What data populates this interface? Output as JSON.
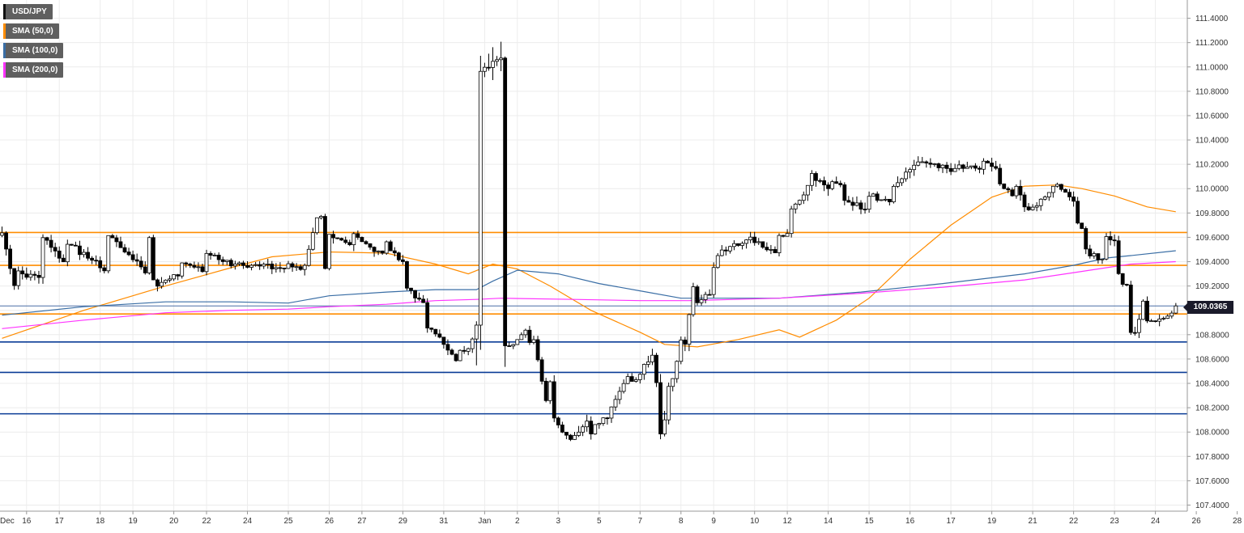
{
  "legend": {
    "symbol": "USD/JPY",
    "sma50": "SMA (50,0)",
    "sma100": "SMA (100,0)",
    "sma200": "SMA (200,0)"
  },
  "price_tag": "109.0365",
  "chart_data": {
    "type": "candlestick",
    "symbol": "USD/JPY",
    "ylim": [
      107.35,
      111.55
    ],
    "yticks": [
      107.4,
      107.6,
      107.8,
      108.0,
      108.2,
      108.4,
      108.6,
      108.8,
      109.0,
      109.2,
      109.4,
      109.6,
      109.8,
      110.0,
      110.2,
      110.4,
      110.6,
      110.8,
      111.0,
      111.2,
      111.4
    ],
    "ytick_labels": [
      "107.4000",
      "107.6000",
      "107.8000",
      "108.0000",
      "108.2000",
      "108.4000",
      "108.6000",
      "108.8000",
      "109.0000",
      "109.2000",
      "109.4000",
      "109.6000",
      "109.8000",
      "110.0000",
      "110.2000",
      "110.4000",
      "110.6000",
      "110.8000",
      "111.0000",
      "111.2000",
      "111.4000"
    ],
    "xtick_labels": [
      "Dec",
      "16",
      "17",
      "18",
      "19",
      "20",
      "22",
      "24",
      "25",
      "26",
      "27",
      "29",
      "31",
      "Jan",
      "2",
      "3",
      "5",
      "7",
      "8",
      "9",
      "10",
      "12",
      "14",
      "15",
      "16",
      "17",
      "19",
      "21",
      "22",
      "23",
      "24",
      "26",
      "28"
    ],
    "xtick_index": [
      0,
      6,
      14,
      24,
      32,
      42,
      50,
      60,
      70,
      80,
      88,
      98,
      108,
      118,
      126,
      136,
      146,
      156,
      166,
      174,
      184,
      192,
      202,
      212,
      222,
      232,
      242,
      252,
      262,
      272,
      282,
      292,
      302
    ],
    "candle_count": 288,
    "last_price": 109.0365,
    "current_price_line": {
      "value": 109.0365,
      "color": "#4a6fa5"
    },
    "horizontal_levels": [
      {
        "value": 109.64,
        "color": "#ff8c00"
      },
      {
        "value": 109.37,
        "color": "#ff8c00"
      },
      {
        "value": 108.97,
        "color": "#ff8c00"
      },
      {
        "value": 108.74,
        "color": "#0a3c96"
      },
      {
        "value": 108.49,
        "color": "#0a3c96"
      },
      {
        "value": 108.15,
        "color": "#0a3c96"
      }
    ],
    "segments": [
      [
        0,
        109.62,
        109.22,
        0.06
      ],
      [
        4,
        109.3,
        109.28,
        0.06
      ],
      [
        10,
        109.62,
        109.4,
        0.06
      ],
      [
        16,
        109.55,
        109.35,
        0.06
      ],
      [
        26,
        109.62,
        109.33,
        0.06
      ],
      [
        36,
        109.58,
        109.25,
        0.06
      ],
      [
        38,
        109.22,
        109.3,
        0.05
      ],
      [
        44,
        109.4,
        109.32,
        0.05
      ],
      [
        50,
        109.48,
        109.4,
        0.05
      ],
      [
        56,
        109.38,
        109.36,
        0.04
      ],
      [
        62,
        109.38,
        109.35,
        0.05
      ],
      [
        70,
        109.4,
        109.33,
        0.05
      ],
      [
        74,
        109.38,
        109.75,
        0.06
      ],
      [
        78,
        109.75,
        109.32,
        0.06
      ],
      [
        80,
        109.6,
        109.55,
        0.06
      ],
      [
        86,
        109.65,
        109.55,
        0.06
      ],
      [
        90,
        109.5,
        109.45,
        0.05
      ],
      [
        94,
        109.55,
        109.42,
        0.05
      ],
      [
        98,
        109.38,
        109.2,
        0.05
      ],
      [
        100,
        109.15,
        109.05,
        0.05
      ],
      [
        104,
        108.85,
        108.8,
        0.05
      ],
      [
        108,
        108.7,
        108.58,
        0.05
      ],
      [
        112,
        108.65,
        108.7,
        0.05
      ],
      [
        115,
        108.75,
        108.78,
        0.04
      ],
      [
        116,
        108.78,
        110.95,
        0.25
      ],
      [
        118,
        110.95,
        111.1,
        0.15
      ],
      [
        121,
        111.18,
        111.05,
        0.12
      ],
      [
        122,
        111.0,
        108.7,
        0.2
      ],
      [
        124,
        108.72,
        108.78,
        0.05
      ],
      [
        128,
        108.85,
        108.75,
        0.05
      ],
      [
        130,
        108.78,
        108.25,
        0.06
      ],
      [
        134,
        108.4,
        108.1,
        0.06
      ],
      [
        136,
        108.05,
        107.92,
        0.05
      ],
      [
        140,
        107.95,
        108.08,
        0.06
      ],
      [
        144,
        108.0,
        108.12,
        0.06
      ],
      [
        148,
        108.1,
        108.35,
        0.06
      ],
      [
        152,
        108.42,
        108.45,
        0.06
      ],
      [
        156,
        108.5,
        108.65,
        0.06
      ],
      [
        160,
        108.55,
        108.42,
        0.05
      ],
      [
        161,
        108.4,
        108.0,
        0.08
      ],
      [
        162,
        108.1,
        108.35,
        0.1
      ],
      [
        164,
        108.42,
        108.6,
        0.06
      ],
      [
        166,
        108.72,
        108.75,
        0.05
      ],
      [
        167,
        108.75,
        109.2,
        0.08
      ],
      [
        170,
        109.08,
        109.15,
        0.06
      ],
      [
        174,
        109.35,
        109.45,
        0.05
      ],
      [
        176,
        109.5,
        109.55,
        0.05
      ],
      [
        182,
        109.6,
        109.58,
        0.06
      ],
      [
        185,
        109.55,
        109.48,
        0.05
      ],
      [
        190,
        109.6,
        109.62,
        0.05
      ],
      [
        193,
        109.82,
        109.88,
        0.06
      ],
      [
        196,
        109.95,
        110.0,
        0.06
      ],
      [
        198,
        110.12,
        110.05,
        0.07
      ],
      [
        202,
        110.02,
        110.05,
        0.07
      ],
      [
        206,
        109.88,
        109.85,
        0.06
      ],
      [
        212,
        109.95,
        109.88,
        0.05
      ],
      [
        218,
        110.0,
        110.12,
        0.06
      ],
      [
        222,
        110.18,
        110.22,
        0.06
      ],
      [
        226,
        110.2,
        110.15,
        0.05
      ],
      [
        234,
        110.18,
        110.18,
        0.05
      ],
      [
        240,
        110.22,
        110.15,
        0.06
      ],
      [
        244,
        110.05,
        109.95,
        0.06
      ],
      [
        248,
        110.02,
        109.8,
        0.06
      ],
      [
        252,
        109.85,
        110.0,
        0.05
      ],
      [
        258,
        110.02,
        109.95,
        0.05
      ],
      [
        262,
        109.9,
        109.7,
        0.06
      ],
      [
        264,
        109.68,
        109.5,
        0.05
      ],
      [
        266,
        109.45,
        109.42,
        0.06
      ],
      [
        270,
        109.6,
        109.6,
        0.05
      ],
      [
        272,
        109.55,
        109.3,
        0.06
      ],
      [
        274,
        109.25,
        109.22,
        0.04
      ],
      [
        275,
        109.2,
        109.2,
        0.02
      ],
      [
        276,
        109.2,
        108.82,
        0.06
      ],
      [
        277,
        108.82,
        109.05,
        0.06
      ],
      [
        280,
        109.05,
        108.92,
        0.06
      ],
      [
        281,
        108.92,
        108.98,
        0.05
      ],
      [
        287,
        109.02,
        109.04,
        0.04
      ]
    ],
    "sma_series": [
      {
        "name": "SMA (50,0)",
        "color": "#ff8c00",
        "points": [
          [
            0,
            108.77
          ],
          [
            20,
            109.0
          ],
          [
            40,
            109.2
          ],
          [
            56,
            109.35
          ],
          [
            66,
            109.44
          ],
          [
            80,
            109.48
          ],
          [
            94,
            109.47
          ],
          [
            106,
            109.38
          ],
          [
            114,
            109.3
          ],
          [
            120,
            109.38
          ],
          [
            126,
            109.34
          ],
          [
            134,
            109.2
          ],
          [
            144,
            109.0
          ],
          [
            156,
            108.82
          ],
          [
            162,
            108.72
          ],
          [
            170,
            108.7
          ],
          [
            180,
            108.76
          ],
          [
            190,
            108.84
          ],
          [
            195,
            108.78
          ],
          [
            204,
            108.92
          ],
          [
            212,
            109.1
          ],
          [
            222,
            109.42
          ],
          [
            232,
            109.7
          ],
          [
            242,
            109.93
          ],
          [
            250,
            110.02
          ],
          [
            258,
            110.03
          ],
          [
            264,
            110.0
          ],
          [
            272,
            109.94
          ],
          [
            280,
            109.85
          ],
          [
            287,
            109.81
          ]
        ]
      },
      {
        "name": "SMA (100,0)",
        "color": "#3a6ea5",
        "points": [
          [
            0,
            108.96
          ],
          [
            20,
            109.03
          ],
          [
            40,
            109.07
          ],
          [
            56,
            109.07
          ],
          [
            70,
            109.06
          ],
          [
            80,
            109.12
          ],
          [
            94,
            109.15
          ],
          [
            106,
            109.17
          ],
          [
            116,
            109.17
          ],
          [
            120,
            109.24
          ],
          [
            126,
            109.33
          ],
          [
            136,
            109.3
          ],
          [
            146,
            109.22
          ],
          [
            156,
            109.16
          ],
          [
            166,
            109.1
          ],
          [
            176,
            109.1
          ],
          [
            190,
            109.1
          ],
          [
            210,
            109.15
          ],
          [
            230,
            109.22
          ],
          [
            250,
            109.3
          ],
          [
            262,
            109.37
          ],
          [
            270,
            109.43
          ],
          [
            276,
            109.45
          ],
          [
            287,
            109.49
          ]
        ]
      },
      {
        "name": "SMA (200,0)",
        "color": "#ff33ff",
        "points": [
          [
            0,
            108.85
          ],
          [
            20,
            108.92
          ],
          [
            40,
            108.98
          ],
          [
            56,
            109.0
          ],
          [
            70,
            109.01
          ],
          [
            80,
            109.03
          ],
          [
            94,
            109.05
          ],
          [
            106,
            109.08
          ],
          [
            116,
            109.09
          ],
          [
            122,
            109.1
          ],
          [
            140,
            109.09
          ],
          [
            156,
            109.08
          ],
          [
            168,
            109.08
          ],
          [
            190,
            109.1
          ],
          [
            210,
            109.14
          ],
          [
            230,
            109.19
          ],
          [
            250,
            109.25
          ],
          [
            262,
            109.31
          ],
          [
            270,
            109.35
          ],
          [
            276,
            109.38
          ],
          [
            287,
            109.4
          ]
        ]
      }
    ]
  }
}
